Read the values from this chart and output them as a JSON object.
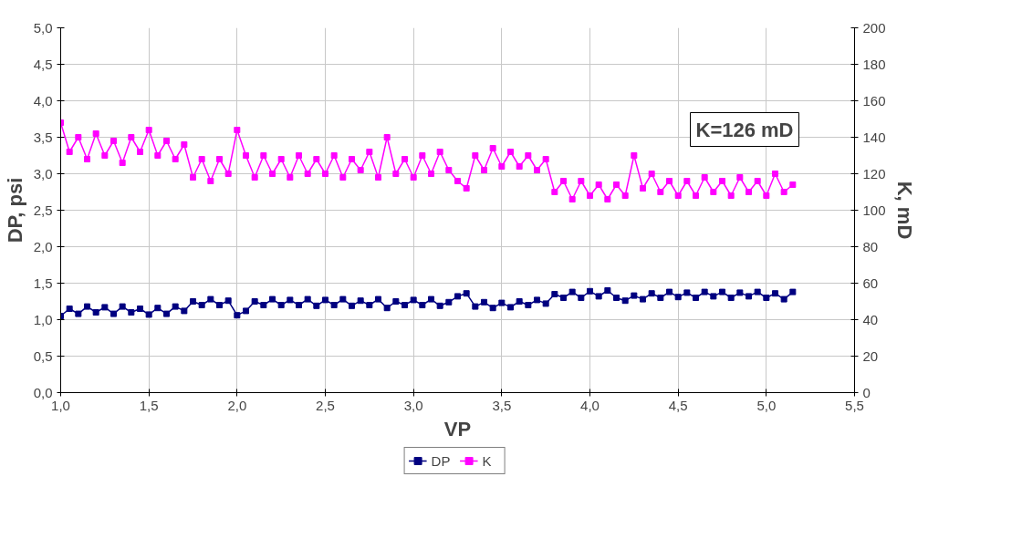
{
  "chart_data": {
    "type": "line",
    "xlabel": "VP",
    "ylabel": "DP, psi",
    "y2label": "K, mD",
    "x": [
      1.0,
      1.05,
      1.1,
      1.15,
      1.2,
      1.25,
      1.3,
      1.35,
      1.4,
      1.45,
      1.5,
      1.55,
      1.6,
      1.65,
      1.7,
      1.75,
      1.8,
      1.85,
      1.9,
      1.95,
      2.0,
      2.05,
      2.1,
      2.15,
      2.2,
      2.25,
      2.3,
      2.35,
      2.4,
      2.45,
      2.5,
      2.55,
      2.6,
      2.65,
      2.7,
      2.75,
      2.8,
      2.85,
      2.9,
      2.95,
      3.0,
      3.05,
      3.1,
      3.15,
      3.2,
      3.25,
      3.3,
      3.35,
      3.4,
      3.45,
      3.5,
      3.55,
      3.6,
      3.65,
      3.7,
      3.75,
      3.8,
      3.85,
      3.9,
      3.95,
      4.0,
      4.05,
      4.1,
      4.15,
      4.2,
      4.25,
      4.3,
      4.35,
      4.4,
      4.45,
      4.5,
      4.55,
      4.6,
      4.65,
      4.7,
      4.75,
      4.8,
      4.85,
      4.9,
      4.95,
      5.0,
      5.05,
      5.1,
      5.15
    ],
    "series": [
      {
        "name": "DP",
        "color": "#000080",
        "values": [
          1.05,
          1.15,
          1.08,
          1.18,
          1.1,
          1.17,
          1.08,
          1.18,
          1.1,
          1.15,
          1.07,
          1.16,
          1.08,
          1.18,
          1.12,
          1.25,
          1.2,
          1.28,
          1.2,
          1.26,
          1.06,
          1.12,
          1.25,
          1.2,
          1.28,
          1.2,
          1.27,
          1.2,
          1.28,
          1.19,
          1.27,
          1.2,
          1.28,
          1.19,
          1.26,
          1.2,
          1.28,
          1.16,
          1.25,
          1.2,
          1.27,
          1.2,
          1.28,
          1.19,
          1.24,
          1.32,
          1.36,
          1.18,
          1.24,
          1.16,
          1.23,
          1.17,
          1.25,
          1.2,
          1.27,
          1.22,
          1.35,
          1.3,
          1.38,
          1.3,
          1.39,
          1.32,
          1.4,
          1.3,
          1.26,
          1.33,
          1.28,
          1.36,
          1.3,
          1.38,
          1.31,
          1.37,
          1.3,
          1.38,
          1.32,
          1.38,
          1.3,
          1.37,
          1.32,
          1.38,
          1.3,
          1.36,
          1.28,
          1.38
        ]
      },
      {
        "name": "K",
        "color": "#ff00ff",
        "axis": "y2",
        "values": [
          148,
          132,
          140,
          128,
          142,
          130,
          138,
          126,
          140,
          132,
          144,
          130,
          138,
          128,
          136,
          118,
          128,
          116,
          128,
          120,
          144,
          130,
          118,
          130,
          120,
          128,
          118,
          130,
          120,
          128,
          120,
          130,
          118,
          128,
          122,
          132,
          118,
          140,
          120,
          128,
          118,
          130,
          120,
          132,
          122,
          116,
          112,
          130,
          122,
          134,
          124,
          132,
          124,
          130,
          122,
          128,
          110,
          116,
          106,
          116,
          108,
          114,
          106,
          114,
          108,
          130,
          112,
          120,
          110,
          116,
          108,
          116,
          108,
          118,
          110,
          116,
          108,
          118,
          110,
          116,
          108,
          120,
          110,
          114
        ]
      }
    ],
    "xlim": [
      1.0,
      5.5
    ],
    "xticks": [
      {
        "value": 1.0,
        "label": "1,0"
      },
      {
        "value": 1.5,
        "label": "1,5"
      },
      {
        "value": 2.0,
        "label": "2,0"
      },
      {
        "value": 2.5,
        "label": "2,5"
      },
      {
        "value": 3.0,
        "label": "3,0"
      },
      {
        "value": 3.5,
        "label": "3,5"
      },
      {
        "value": 4.0,
        "label": "4,0"
      },
      {
        "value": 4.5,
        "label": "4,5"
      },
      {
        "value": 5.0,
        "label": "5,0"
      },
      {
        "value": 5.5,
        "label": "5,5"
      }
    ],
    "ylim": [
      0,
      5
    ],
    "yticks": [
      {
        "value": 0,
        "label": "0,0"
      },
      {
        "value": 0.5,
        "label": "0,5"
      },
      {
        "value": 1.0,
        "label": "1,0"
      },
      {
        "value": 1.5,
        "label": "1,5"
      },
      {
        "value": 2.0,
        "label": "2,0"
      },
      {
        "value": 2.5,
        "label": "2,5"
      },
      {
        "value": 3.0,
        "label": "3,0"
      },
      {
        "value": 3.5,
        "label": "3,5"
      },
      {
        "value": 4.0,
        "label": "4,0"
      },
      {
        "value": 4.5,
        "label": "4,5"
      },
      {
        "value": 5.0,
        "label": "5,0"
      }
    ],
    "y2lim": [
      0,
      200
    ],
    "y2ticks": [
      0,
      20,
      40,
      60,
      80,
      100,
      120,
      140,
      160,
      180,
      200
    ],
    "annotations": [
      "K=126 mD"
    ],
    "grid": true,
    "legend": "bottom",
    "marker": "square",
    "line_style": "solid"
  }
}
